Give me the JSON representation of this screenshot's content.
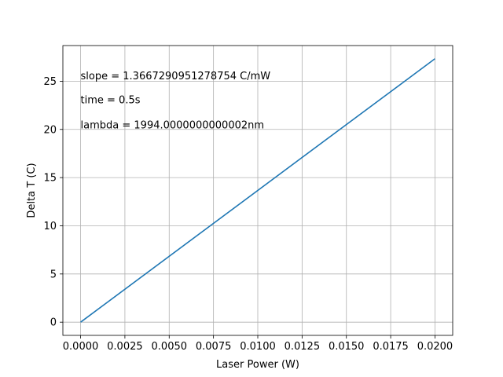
{
  "chart_data": {
    "type": "line",
    "title": "",
    "xlabel": "Laser Power (W)",
    "ylabel": "Delta T (C)",
    "xlim": [
      -0.001,
      0.021
    ],
    "ylim": [
      -1.37,
      28.7
    ],
    "grid": true,
    "x_ticks": [
      0.0,
      0.0025,
      0.005,
      0.0075,
      0.01,
      0.0125,
      0.015,
      0.0175,
      0.02
    ],
    "x_tick_labels": [
      "0.0000",
      "0.0025",
      "0.0050",
      "0.0075",
      "0.0100",
      "0.0125",
      "0.0150",
      "0.0175",
      "0.0200"
    ],
    "y_ticks": [
      0,
      5,
      10,
      15,
      20,
      25
    ],
    "y_tick_labels": [
      "0",
      "5",
      "10",
      "15",
      "20",
      "25"
    ],
    "series": [
      {
        "color": "#1f77b4",
        "x": [
          0.0,
          0.02
        ],
        "y": [
          0.0,
          27.33458
        ]
      }
    ],
    "annotations": [
      {
        "text": "slope = 1.3667290951278754 C/mW",
        "x": 0.0,
        "y": 25.2
      },
      {
        "text": "time = 0.5s",
        "x": 0.0,
        "y": 22.7
      },
      {
        "text": "lambda = 1994.0000000000002nm",
        "x": 0.0,
        "y": 20.1
      }
    ]
  }
}
